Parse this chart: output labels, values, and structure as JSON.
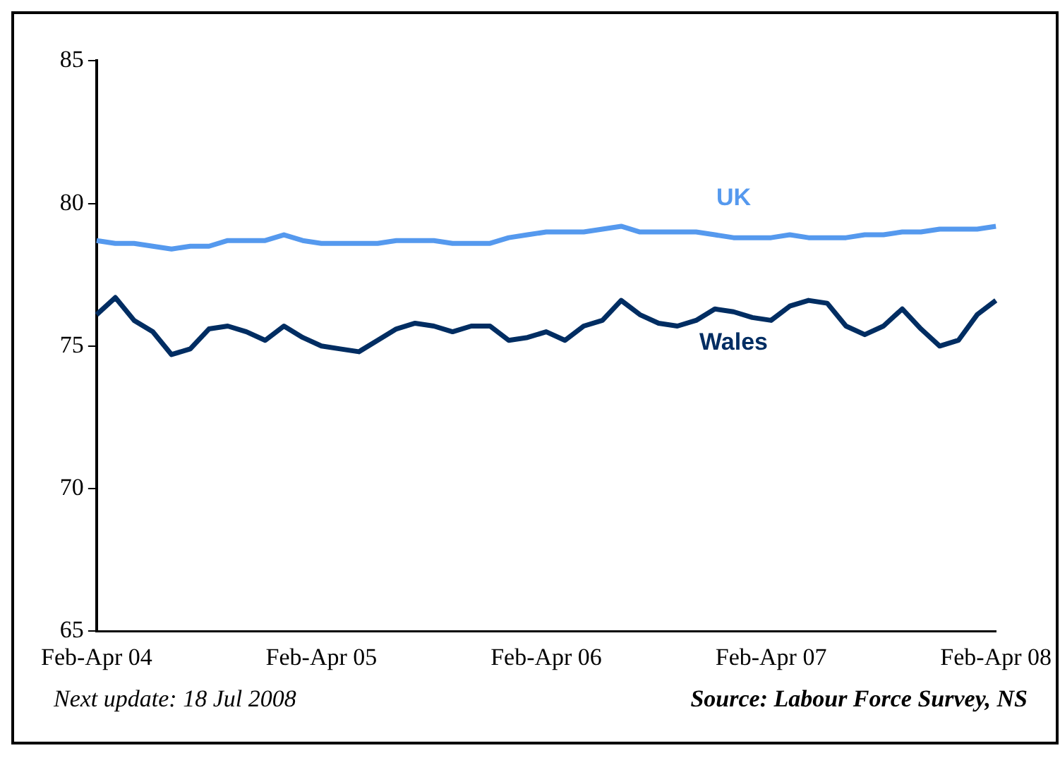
{
  "chart_data": {
    "type": "line",
    "categories": [
      "Feb-Apr 04",
      null,
      null,
      null,
      null,
      null,
      null,
      null,
      null,
      null,
      null,
      null,
      "Feb-Apr 05",
      null,
      null,
      null,
      null,
      null,
      null,
      null,
      null,
      null,
      null,
      null,
      "Feb-Apr 06",
      null,
      null,
      null,
      null,
      null,
      null,
      null,
      null,
      null,
      null,
      null,
      "Feb-Apr 07",
      null,
      null,
      null,
      null,
      null,
      null,
      null,
      null,
      null,
      null,
      null,
      "Feb-Apr 08"
    ],
    "series": [
      {
        "name": "UK",
        "color": "#5599ee",
        "values": [
          78.7,
          78.6,
          78.6,
          78.5,
          78.4,
          78.5,
          78.5,
          78.7,
          78.7,
          78.7,
          78.9,
          78.7,
          78.6,
          78.6,
          78.6,
          78.6,
          78.7,
          78.7,
          78.7,
          78.6,
          78.6,
          78.6,
          78.8,
          78.9,
          79.0,
          79.0,
          79.0,
          79.1,
          79.2,
          79.0,
          79.0,
          79.0,
          79.0,
          78.9,
          78.8,
          78.8,
          78.8,
          78.9,
          78.8,
          78.8,
          78.8,
          78.9,
          78.9,
          79.0,
          79.0,
          79.1,
          79.1,
          79.1,
          79.2
        ]
      },
      {
        "name": "Wales",
        "color": "#002d62",
        "values": [
          76.1,
          76.7,
          75.9,
          75.5,
          74.7,
          74.9,
          75.6,
          75.7,
          75.5,
          75.2,
          75.7,
          75.3,
          75.0,
          74.9,
          74.8,
          75.2,
          75.6,
          75.8,
          75.7,
          75.5,
          75.7,
          75.7,
          75.2,
          75.3,
          75.5,
          75.2,
          75.7,
          75.9,
          76.6,
          76.1,
          75.8,
          75.7,
          75.9,
          76.3,
          76.2,
          76.0,
          75.9,
          76.4,
          76.6,
          76.5,
          75.7,
          75.4,
          75.7,
          76.3,
          75.6,
          75.0,
          75.2,
          76.1,
          76.6
        ]
      }
    ],
    "ylim": [
      65,
      85
    ],
    "yticks": [
      65,
      70,
      75,
      80,
      85
    ],
    "grid": false,
    "legend": false,
    "marker": "none",
    "line_style": "solid",
    "annotations": [
      "Next update: 18 Jul 2008",
      "Source: Labour Force Survey, NS"
    ]
  }
}
